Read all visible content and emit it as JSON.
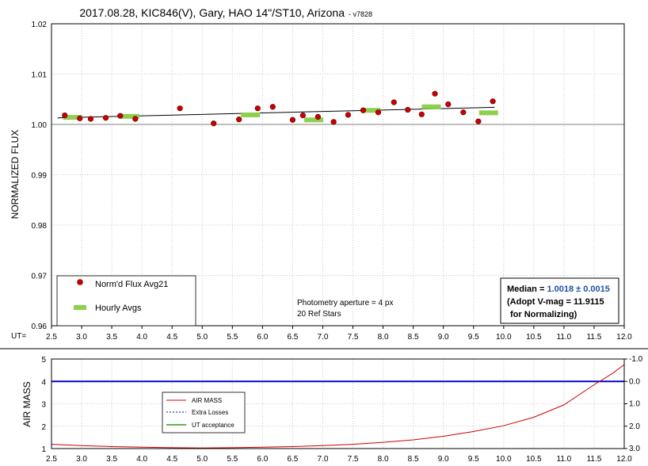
{
  "chart_data": [
    {
      "type": "scatter",
      "title": "2017.08.28, KIC846(V), Gary, HAO 14\"/ST10, Arizona",
      "title_suffix": "- v7828",
      "ylabel": "NORMALIZED FLUX",
      "xlabel_prefix": "UT=",
      "xlim": [
        2.5,
        12.0
      ],
      "ylim": [
        0.96,
        1.02
      ],
      "x_ticks": [
        "2.5",
        "3.0",
        "3.5",
        "4.0",
        "4.5",
        "5.0",
        "5.5",
        "6.0",
        "6.5",
        "7.0",
        "7.5",
        "8.0",
        "8.5",
        "9.0",
        "9.5",
        "10.0",
        "10.5",
        "11.0",
        "11.5",
        "12.0"
      ],
      "y_ticks": [
        "0.96",
        "0.97",
        "0.98",
        "0.99",
        "1.00",
        "1.01",
        "1.02"
      ],
      "grid": true,
      "reference_line": 1.0,
      "series": [
        {
          "name": "Norm'd Flux Avg21",
          "color": "#cc0000",
          "points": [
            [
              2.72,
              1.0018
            ],
            [
              2.97,
              1.0012
            ],
            [
              3.15,
              1.0011
            ],
            [
              3.4,
              1.0013
            ],
            [
              3.64,
              1.0017
            ],
            [
              3.89,
              1.0011
            ],
            [
              4.63,
              1.0032
            ],
            [
              5.19,
              1.0002
            ],
            [
              5.61,
              1.001
            ],
            [
              5.92,
              1.0032
            ],
            [
              6.17,
              1.0035
            ],
            [
              6.5,
              1.0009
            ],
            [
              6.67,
              1.0018
            ],
            [
              6.92,
              1.0015
            ],
            [
              7.18,
              1.0005
            ],
            [
              7.42,
              1.0019
            ],
            [
              7.67,
              1.0028
            ],
            [
              7.92,
              1.0024
            ],
            [
              8.18,
              1.0044
            ],
            [
              8.41,
              1.0029
            ],
            [
              8.64,
              1.002
            ],
            [
              8.86,
              1.0061
            ],
            [
              9.08,
              1.004
            ],
            [
              9.33,
              1.0024
            ],
            [
              9.58,
              1.0006
            ],
            [
              9.82,
              1.0046
            ]
          ]
        },
        {
          "name": "Hourly Avgs",
          "color": "#8ecf4d",
          "points": [
            [
              2.85,
              1.0014
            ],
            [
              3.8,
              1.0016
            ],
            [
              5.8,
              1.0019
            ],
            [
              6.85,
              1.0009
            ],
            [
              7.8,
              1.0028
            ],
            [
              8.8,
              1.0035
            ],
            [
              9.75,
              1.0023
            ]
          ]
        },
        {
          "name": "trend",
          "color": "#000000",
          "points": [
            [
              2.6,
              1.0013
            ],
            [
              9.85,
              1.0034
            ]
          ]
        }
      ],
      "annotations": {
        "aperture": "Photometry aperture = 4 px",
        "ref_stars": "20 Ref Stars",
        "median_label": "Median = ",
        "median_value": "1.0018 ± 0.0015",
        "adopt_line": "(Adopt V-mag = 11.9115",
        "for_line": "for Normalizing)"
      },
      "legend_position": "bottom-left"
    },
    {
      "type": "line",
      "ylabel": "AIR MASS",
      "xlim": [
        2.5,
        12.0
      ],
      "ylim": [
        1,
        5
      ],
      "y_ticks": [
        "1",
        "2",
        "3",
        "4",
        "5"
      ],
      "y2_ticks": [
        "-1.0",
        "0.0",
        "1.0",
        "2.0",
        "3.0"
      ],
      "y2lim": [
        3.0,
        -1.0
      ],
      "x_ticks": [
        "2.5",
        "3.0",
        "3.5",
        "4.0",
        "4.5",
        "5.0",
        "5.5",
        "6.0",
        "6.5",
        "7.0",
        "7.5",
        "8.0",
        "8.5",
        "9.0",
        "9.5",
        "10.0",
        "10.5",
        "11.0",
        "11.5",
        "12.0"
      ],
      "grid": true,
      "series": [
        {
          "name": "AIR MASS",
          "color": "#cc0000",
          "x": [
            2.5,
            3.0,
            3.5,
            4.0,
            4.5,
            5.0,
            5.5,
            6.0,
            6.5,
            7.0,
            7.5,
            8.0,
            8.5,
            9.0,
            9.5,
            10.0,
            10.5,
            11.0,
            11.5,
            11.8,
            12.0
          ],
          "values": [
            1.19,
            1.13,
            1.09,
            1.06,
            1.04,
            1.03,
            1.04,
            1.06,
            1.09,
            1.13,
            1.19,
            1.28,
            1.39,
            1.55,
            1.76,
            2.02,
            2.4,
            2.95,
            3.85,
            4.35,
            4.75
          ]
        },
        {
          "name": "Extra Losses",
          "color": "#0000cc",
          "x": [
            2.5,
            12.0
          ],
          "values": [
            0.0,
            0.0
          ]
        },
        {
          "name": "UT acceptance",
          "color": "#6ab04c",
          "x": [],
          "values": []
        }
      ],
      "legend_position": "center-left"
    }
  ],
  "colors": {
    "grid": "#c8c8c8",
    "median_value": "#1f4fa8"
  }
}
